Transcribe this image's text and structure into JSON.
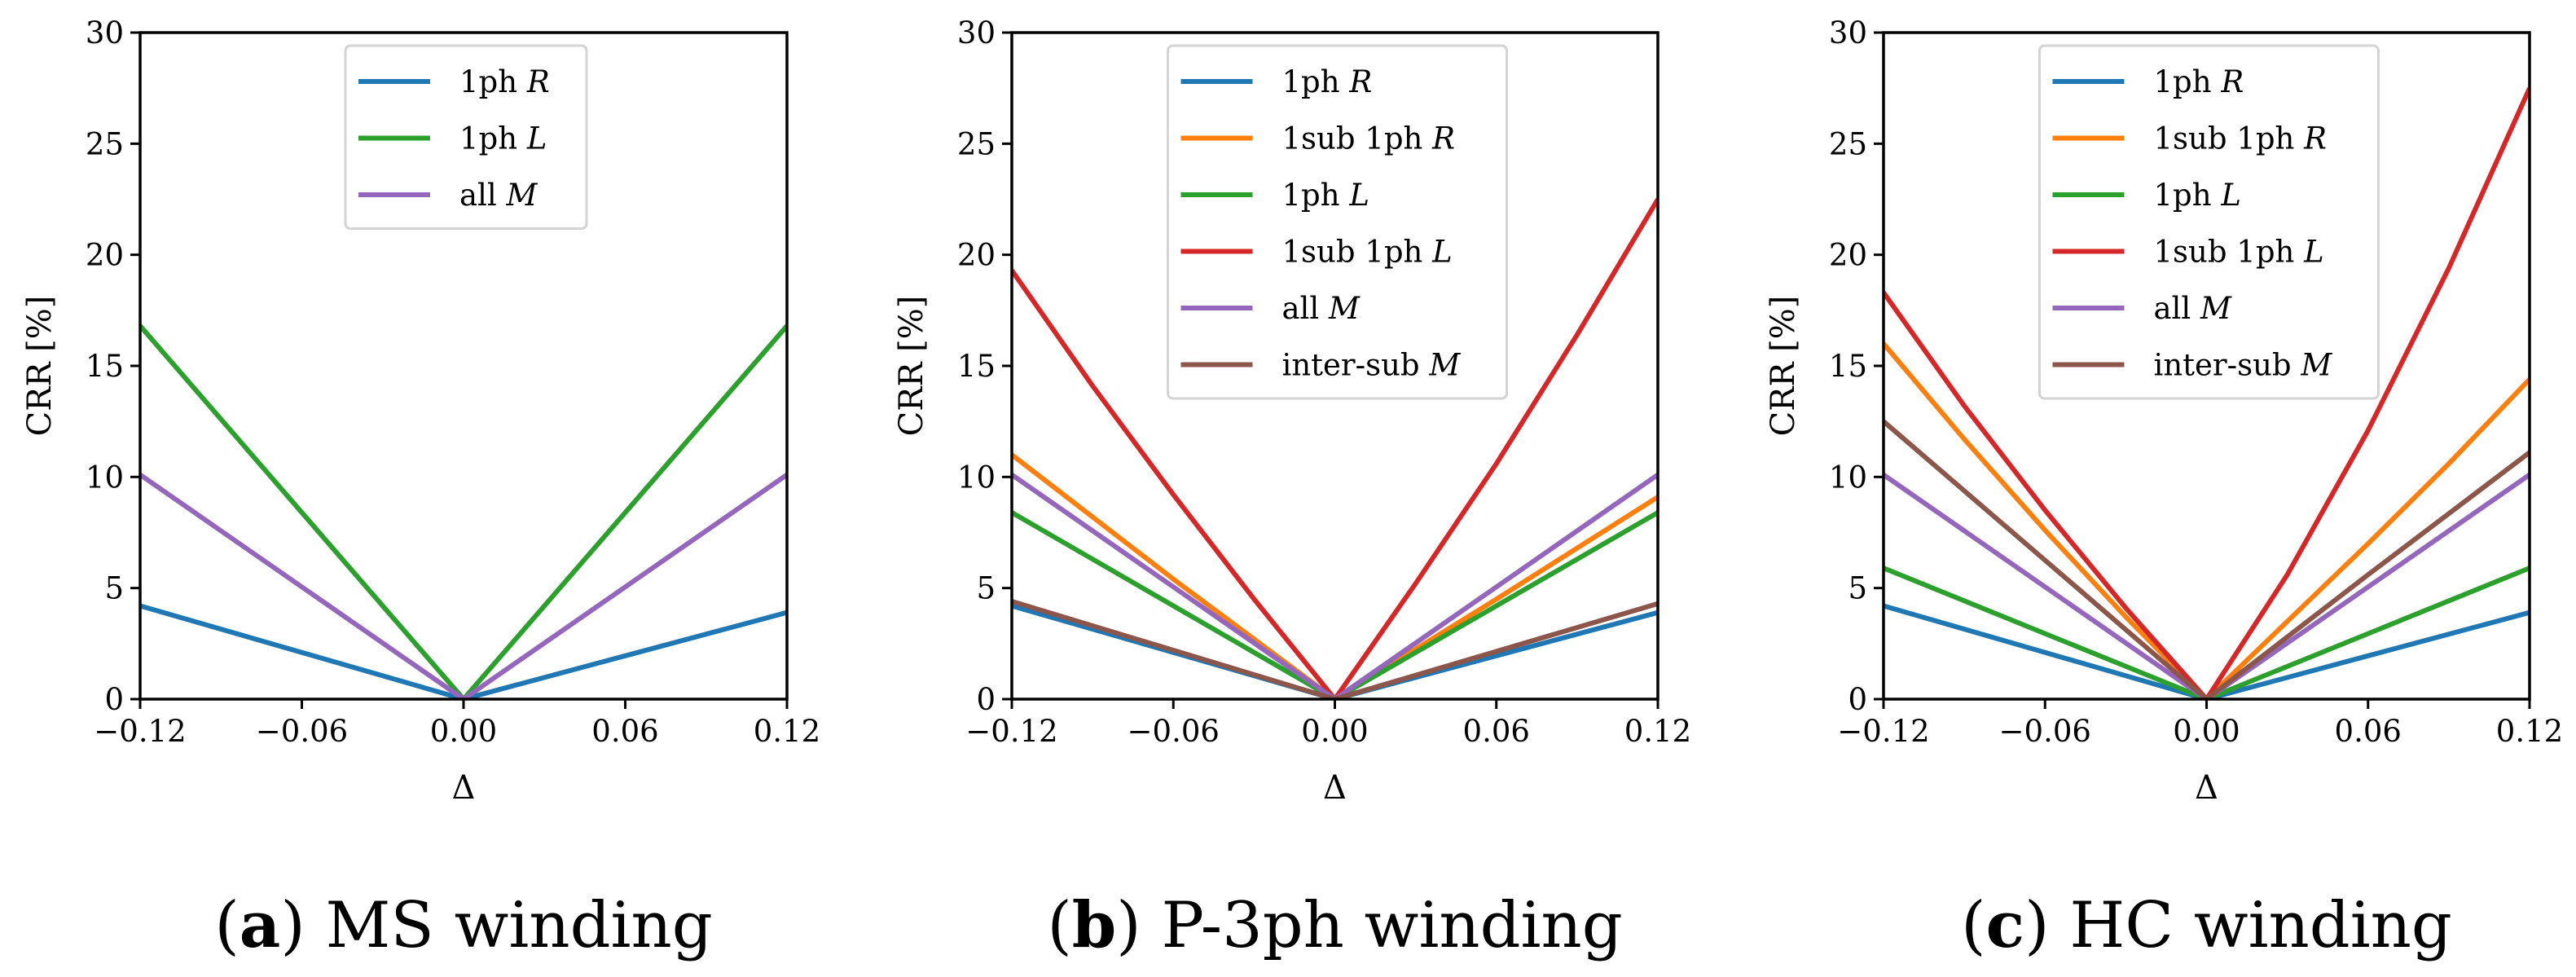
{
  "chart_data": [
    {
      "type": "line",
      "panel_label": "a",
      "caption": "MS winding",
      "xlabel": "Δ",
      "ylabel": "CRR [%]",
      "xlim": [
        -0.12,
        0.12
      ],
      "ylim": [
        0,
        30
      ],
      "xticks": [
        -0.12,
        -0.06,
        0.0,
        0.06,
        0.12
      ],
      "xtick_labels": [
        "−0.12",
        "−0.06",
        "0.00",
        "0.06",
        "0.12"
      ],
      "yticks": [
        0,
        5,
        10,
        15,
        20,
        25,
        30
      ],
      "ytick_labels": [
        "0",
        "5",
        "10",
        "15",
        "20",
        "25",
        "30"
      ],
      "legend_position": "top-center",
      "series": [
        {
          "name": "1ph",
          "var": "R",
          "color": "#1f77b4",
          "x": [
            -0.12,
            -0.06,
            0.0,
            0.06,
            0.12
          ],
          "y": [
            4.2,
            2.1,
            0.0,
            1.95,
            3.9
          ]
        },
        {
          "name": "1ph",
          "var": "L",
          "color": "#2ca02c",
          "x": [
            -0.12,
            -0.06,
            0.0,
            0.06,
            0.12
          ],
          "y": [
            16.8,
            8.4,
            0.0,
            8.4,
            16.8
          ]
        },
        {
          "name": "all",
          "var": "M",
          "color": "#9467bd",
          "x": [
            -0.12,
            -0.06,
            0.0,
            0.06,
            0.12
          ],
          "y": [
            10.1,
            5.05,
            0.0,
            5.05,
            10.1
          ]
        }
      ]
    },
    {
      "type": "line",
      "panel_label": "b",
      "caption": "P-3ph winding",
      "xlabel": "Δ",
      "ylabel": "CRR [%]",
      "xlim": [
        -0.12,
        0.12
      ],
      "ylim": [
        0,
        30
      ],
      "xticks": [
        -0.12,
        -0.06,
        0.0,
        0.06,
        0.12
      ],
      "xtick_labels": [
        "−0.12",
        "−0.06",
        "0.00",
        "0.06",
        "0.12"
      ],
      "yticks": [
        0,
        5,
        10,
        15,
        20,
        25,
        30
      ],
      "ytick_labels": [
        "0",
        "5",
        "10",
        "15",
        "20",
        "25",
        "30"
      ],
      "legend_position": "top-center",
      "series": [
        {
          "name": "1ph",
          "var": "R",
          "color": "#1f77b4",
          "x": [
            -0.12,
            -0.06,
            0.0,
            0.06,
            0.12
          ],
          "y": [
            4.2,
            2.1,
            0.0,
            1.95,
            3.9
          ]
        },
        {
          "name": "1sub 1ph",
          "var": "R",
          "color": "#ff7f0e",
          "x": [
            -0.12,
            -0.06,
            0.0,
            0.06,
            0.12
          ],
          "y": [
            11.0,
            5.4,
            0.0,
            4.5,
            9.1
          ]
        },
        {
          "name": "1ph",
          "var": "L",
          "color": "#2ca02c",
          "x": [
            -0.12,
            -0.06,
            0.0,
            0.06,
            0.12
          ],
          "y": [
            8.4,
            4.2,
            0.0,
            4.2,
            8.4
          ]
        },
        {
          "name": "1sub 1ph",
          "var": "L",
          "color": "#d62728",
          "x": [
            -0.12,
            -0.09,
            -0.06,
            -0.03,
            0.0,
            0.03,
            0.06,
            0.09,
            0.12
          ],
          "y": [
            19.3,
            14.1,
            9.2,
            4.5,
            0.0,
            5.2,
            10.6,
            16.4,
            22.5
          ]
        },
        {
          "name": "all",
          "var": "M",
          "color": "#9467bd",
          "x": [
            -0.12,
            -0.06,
            0.0,
            0.06,
            0.12
          ],
          "y": [
            10.1,
            5.05,
            0.0,
            5.05,
            10.1
          ]
        },
        {
          "name": "inter-sub",
          "var": "M",
          "color": "#8c564b",
          "x": [
            -0.12,
            -0.06,
            0.0,
            0.06,
            0.12
          ],
          "y": [
            4.4,
            2.2,
            0.0,
            2.15,
            4.3
          ]
        }
      ]
    },
    {
      "type": "line",
      "panel_label": "c",
      "caption": "HC winding",
      "xlabel": "Δ",
      "ylabel": "CRR [%]",
      "xlim": [
        -0.12,
        0.12
      ],
      "ylim": [
        0,
        30
      ],
      "xticks": [
        -0.12,
        -0.06,
        0.0,
        0.06,
        0.12
      ],
      "xtick_labels": [
        "−0.12",
        "−0.06",
        "0.00",
        "0.06",
        "0.12"
      ],
      "yticks": [
        0,
        5,
        10,
        15,
        20,
        25,
        30
      ],
      "ytick_labels": [
        "0",
        "5",
        "10",
        "15",
        "20",
        "25",
        "30"
      ],
      "legend_position": "top-center",
      "series": [
        {
          "name": "1ph",
          "var": "R",
          "color": "#1f77b4",
          "x": [
            -0.12,
            -0.06,
            0.0,
            0.06,
            0.12
          ],
          "y": [
            4.2,
            2.1,
            0.0,
            1.95,
            3.9
          ]
        },
        {
          "name": "1sub 1ph",
          "var": "R",
          "color": "#ff7f0e",
          "x": [
            -0.12,
            -0.09,
            -0.06,
            -0.03,
            0.0,
            0.03,
            0.06,
            0.09,
            0.12
          ],
          "y": [
            16.0,
            11.7,
            7.6,
            3.7,
            0.0,
            3.5,
            7.0,
            10.6,
            14.4
          ]
        },
        {
          "name": "1ph",
          "var": "L",
          "color": "#2ca02c",
          "x": [
            -0.12,
            -0.06,
            0.0,
            0.06,
            0.12
          ],
          "y": [
            5.9,
            2.95,
            0.0,
            2.95,
            5.9
          ]
        },
        {
          "name": "1sub 1ph",
          "var": "L",
          "color": "#d62728",
          "x": [
            -0.12,
            -0.09,
            -0.06,
            -0.03,
            0.0,
            0.03,
            0.06,
            0.09,
            0.12
          ],
          "y": [
            18.3,
            13.2,
            8.5,
            4.1,
            0.0,
            5.6,
            12.1,
            19.4,
            27.5
          ]
        },
        {
          "name": "all",
          "var": "M",
          "color": "#9467bd",
          "x": [
            -0.12,
            -0.06,
            0.0,
            0.06,
            0.12
          ],
          "y": [
            10.1,
            5.05,
            0.0,
            5.05,
            10.1
          ]
        },
        {
          "name": "inter-sub",
          "var": "M",
          "color": "#8c564b",
          "x": [
            -0.12,
            -0.06,
            0.0,
            0.06,
            0.12
          ],
          "y": [
            12.5,
            6.25,
            0.0,
            5.6,
            11.1
          ]
        }
      ]
    }
  ]
}
